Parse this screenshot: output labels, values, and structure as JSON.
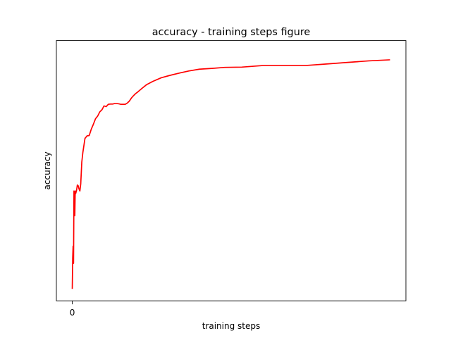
{
  "chart_data": {
    "type": "line",
    "title": "accuracy - training steps figure",
    "xlabel": "training steps",
    "ylabel": "accuracy",
    "x_ticks": [
      0
    ],
    "x_tick_labels": [
      "0"
    ],
    "y_tick_labels": [],
    "xlim": [
      -7.5,
      157.5
    ],
    "ylim": [
      0.0,
      1.0
    ],
    "grid": false,
    "legend": "none",
    "line_color": "#ff0000",
    "series": [
      {
        "x": [
          0,
          0.2,
          0.4,
          0.6,
          0.8,
          1.0,
          1.2,
          1.4,
          1.6,
          2.0,
          2.4,
          2.8,
          3.2,
          3.6,
          4.0,
          4.5,
          5,
          6,
          7,
          8,
          9,
          10,
          11,
          12,
          13,
          14,
          15,
          16,
          17,
          18,
          19,
          20,
          21,
          22,
          23,
          24,
          25,
          26,
          27,
          28,
          29,
          30,
          31,
          33,
          35,
          38,
          42,
          46,
          50,
          55,
          60,
          66,
          72,
          80,
          90,
          100,
          110,
          120,
          130,
          140,
          150
        ],
        "y": [
          0.046,
          0.166,
          0.21,
          0.144,
          0.422,
          0.412,
          0.327,
          0.422,
          0.412,
          0.423,
          0.445,
          0.442,
          0.43,
          0.422,
          0.449,
          0.533,
          0.57,
          0.624,
          0.634,
          0.635,
          0.66,
          0.679,
          0.7,
          0.71,
          0.726,
          0.734,
          0.749,
          0.746,
          0.755,
          0.756,
          0.756,
          0.758,
          0.758,
          0.757,
          0.755,
          0.755,
          0.755,
          0.76,
          0.768,
          0.78,
          0.789,
          0.797,
          0.803,
          0.817,
          0.83,
          0.843,
          0.857,
          0.866,
          0.874,
          0.883,
          0.89,
          0.893,
          0.897,
          0.898,
          0.904,
          0.904,
          0.904,
          0.91,
          0.916,
          0.922,
          0.926
        ]
      }
    ]
  }
}
